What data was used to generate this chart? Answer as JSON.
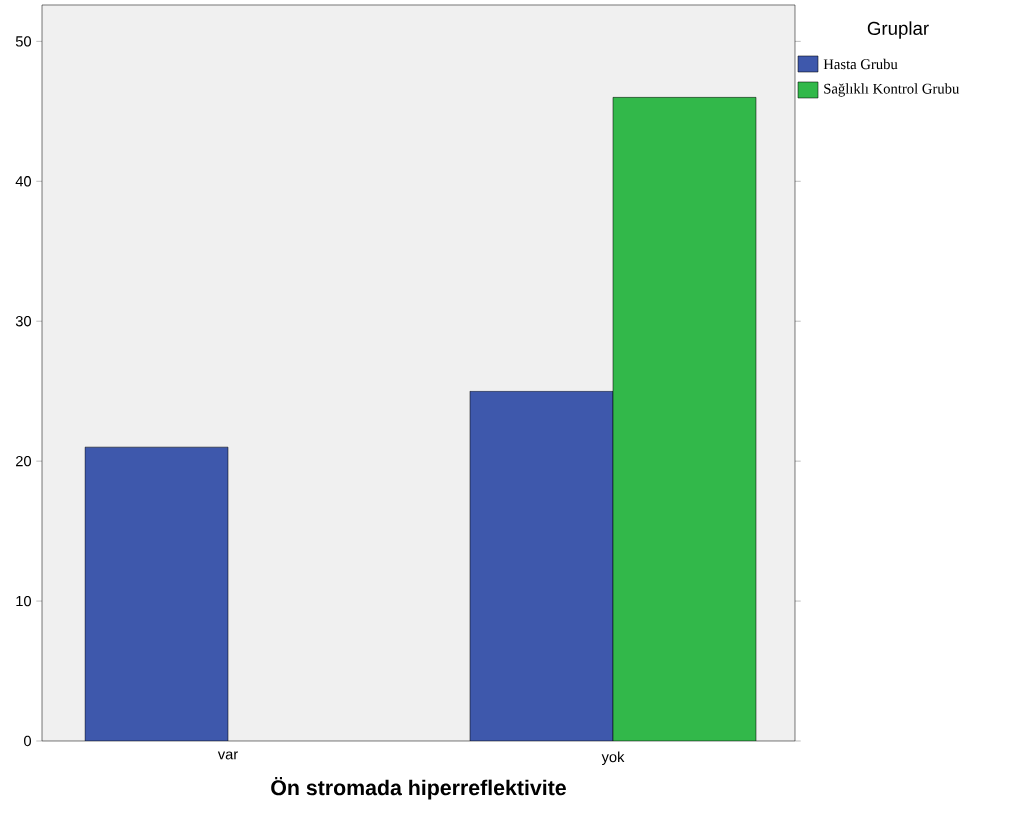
{
  "chart_data": {
    "type": "bar",
    "xlabel": "Ön stromada hiperreflektivite",
    "legend_title": "Gruplar",
    "categories": [
      "var",
      "yok"
    ],
    "series": [
      {
        "name": "Hasta Grubu",
        "color": "#3e58ac",
        "values": [
          21,
          25
        ]
      },
      {
        "name": "Sağlıklı Kontrol Grubu",
        "color": "#32b84a",
        "values": [
          null,
          46
        ]
      }
    ],
    "ylim": [
      0,
      52.6
    ],
    "yticks": [
      0,
      10,
      20,
      30,
      40,
      50
    ],
    "grid": false,
    "legend": "top right"
  }
}
